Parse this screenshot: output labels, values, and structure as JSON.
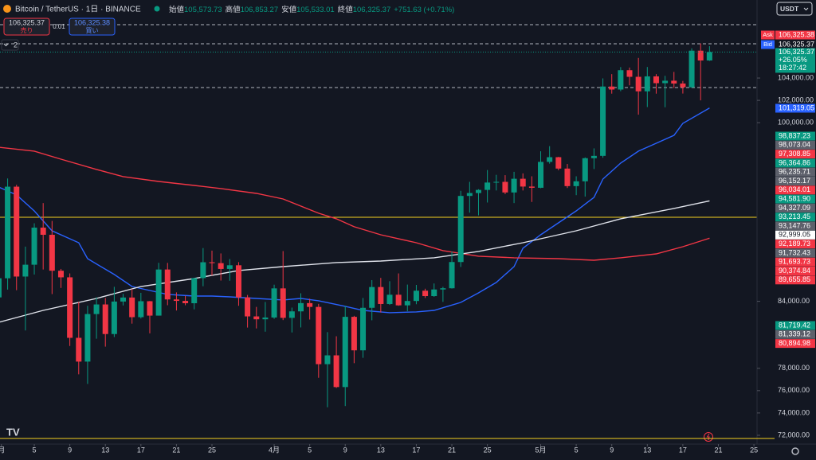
{
  "header": {
    "symbol": "Bitcoin / TetherUS · 1日 · BINANCE",
    "ohlc": [
      {
        "label": "始値",
        "value": "105,573.73"
      },
      {
        "label": "高値",
        "value": "106,853.27"
      },
      {
        "label": "安値",
        "value": "105,533.01"
      },
      {
        "label": "終値",
        "value": "106,325.37"
      }
    ],
    "change": "+751.63 (+0.71%)"
  },
  "order": {
    "sell_price": "106,325.37",
    "sell": "売り",
    "qty": "0.01",
    "buy_price": "106,325.38",
    "buy": "買い"
  },
  "indicators_count": "2",
  "currency": "USDT",
  "chart_data": {
    "type": "candlestick",
    "up_color": "#089981",
    "down_color": "#f23645",
    "xlim": [
      0.14,
      85.35
    ],
    "ylim": [
      71070,
      110990
    ],
    "x": [
      0,
      1,
      2,
      3,
      4,
      5,
      6,
      7,
      8,
      9,
      10,
      11,
      12,
      13,
      14,
      15,
      16,
      17,
      18,
      19,
      20,
      21,
      22,
      23,
      24,
      25,
      26,
      27,
      28,
      29,
      30,
      31,
      32,
      33,
      34,
      35,
      36,
      37,
      38,
      39,
      40,
      41,
      42,
      43,
      44,
      45,
      46,
      47,
      48,
      49,
      50,
      51,
      52,
      53,
      54,
      55,
      56,
      57,
      58,
      59,
      60,
      61,
      62,
      63,
      64,
      65,
      66,
      67,
      68,
      69,
      70,
      71,
      72,
      73,
      74,
      75,
      76,
      77,
      78,
      79,
      80
    ],
    "open": [
      84350,
      86065,
      94270,
      86220,
      87280,
      90600,
      89960,
      86740,
      86150,
      80730,
      78600,
      82860,
      83720,
      81070,
      83980,
      84340,
      82580,
      84010,
      82720,
      86850,
      84170,
      84040,
      83830,
      86080,
      87500,
      87420,
      86900,
      87230,
      84350,
      82650,
      82390,
      82550,
      85160,
      82520,
      83100,
      83840,
      83500,
      78370,
      79160,
      76320,
      82610,
      79610,
      83420,
      85280,
      83760,
      84590,
      83640,
      84030,
      84950,
      84470,
      85060,
      85170,
      87520,
      93440,
      93700,
      93980,
      94640,
      94700,
      93750,
      94980,
      94280,
      94170,
      96490,
      96910,
      95890,
      94320,
      94750,
      96820,
      97030,
      103240,
      102970,
      104700,
      104110,
      102810,
      104150,
      103540,
      103760,
      103510,
      103170,
      106450,
      105573.73
    ],
    "high": [
      86550,
      95000,
      94430,
      88900,
      90990,
      92800,
      91200,
      86900,
      86500,
      83950,
      83600,
      84360,
      84300,
      85300,
      84670,
      85120,
      84760,
      84030,
      87450,
      87440,
      84800,
      84500,
      86100,
      88770,
      88540,
      88290,
      87790,
      87510,
      84570,
      83500,
      83940,
      85490,
      88500,
      83440,
      84720,
      84230,
      83770,
      81240,
      80870,
      83590,
      82700,
      84300,
      85900,
      86100,
      85800,
      86500,
      85500,
      85470,
      85130,
      85600,
      85300,
      88460,
      93900,
      94700,
      94040,
      95760,
      95330,
      95300,
      95600,
      95460,
      95200,
      97440,
      97900,
      96940,
      96300,
      95200,
      96890,
      97700,
      103970,
      104350,
      104980,
      104940,
      105800,
      104990,
      104350,
      104200,
      104550,
      103740,
      106660,
      107100,
      106853.27
    ],
    "low": [
      83750,
      85050,
      85000,
      81390,
      86400,
      86850,
      84650,
      85200,
      80000,
      77460,
      76600,
      80650,
      79940,
      80800,
      83630,
      82000,
      82460,
      81130,
      82720,
      83650,
      83180,
      83650,
      83280,
      85350,
      86310,
      85860,
      85840,
      83600,
      81650,
      81570,
      81280,
      82430,
      82320,
      81210,
      81660,
      82370,
      77150,
      74510,
      76240,
      74620,
      78460,
      78940,
      82300,
      83000,
      83680,
      83600,
      83110,
      83740,
      84300,
      84400,
      83950,
      85140,
      87080,
      91940,
      91700,
      92850,
      93930,
      93600,
      92800,
      93930,
      92900,
      94130,
      96330,
      95740,
      94150,
      93510,
      93380,
      95850,
      96860,
      102600,
      102820,
      103350,
      100720,
      101400,
      102600,
      101380,
      103100,
      102610,
      103100,
      102000,
      105533.01
    ],
    "close": [
      86065,
      94270,
      86220,
      87280,
      90600,
      89960,
      86740,
      86150,
      80730,
      78600,
      82860,
      83720,
      81070,
      83980,
      84340,
      82580,
      84010,
      82720,
      86850,
      84170,
      84040,
      83830,
      86080,
      87500,
      87420,
      86900,
      87230,
      84350,
      82650,
      82390,
      82550,
      85160,
      82520,
      83100,
      83840,
      83500,
      78370,
      79160,
      76320,
      82610,
      79610,
      83420,
      85280,
      83760,
      84590,
      83640,
      84030,
      84950,
      84470,
      85060,
      85170,
      87520,
      93440,
      93700,
      93980,
      94640,
      94700,
      93750,
      94980,
      94280,
      94170,
      96490,
      96910,
      95890,
      94320,
      94750,
      96820,
      97030,
      103240,
      102970,
      104700,
      104110,
      102810,
      104150,
      103540,
      103760,
      103510,
      103170,
      106450,
      105573.73,
      106325.37
    ],
    "lines": [
      {
        "color": "#2962ff",
        "x": [
          0,
          2,
          4,
          6,
          9,
          10,
          13,
          15,
          17,
          19,
          22,
          24,
          26,
          29,
          32,
          34,
          36,
          39,
          41,
          44,
          47,
          49,
          52,
          54,
          56,
          58,
          59,
          61,
          63,
          65,
          67,
          68,
          70,
          72,
          74,
          76,
          77,
          80
        ],
        "values": [
          94240,
          93530,
          92100,
          90320,
          89250,
          87820,
          86400,
          85330,
          84970,
          84620,
          84470,
          84470,
          84400,
          84260,
          84120,
          84260,
          84050,
          83550,
          83190,
          82980,
          83050,
          83190,
          83900,
          84760,
          85690,
          87110,
          88750,
          89960,
          91030,
          92100,
          93310,
          94950,
          96380,
          97450,
          98160,
          98870,
          99940,
          101319.05
        ]
      },
      {
        "color": "#f23645",
        "x": [
          0,
          4,
          7,
          11,
          14,
          18,
          22,
          25,
          29,
          32,
          36,
          38,
          40,
          43,
          47,
          50,
          54,
          58,
          63,
          67,
          70,
          74,
          77,
          80
        ],
        "values": [
          97800,
          97450,
          96730,
          95810,
          95170,
          94740,
          94380,
          94100,
          93670,
          93170,
          91890,
          91390,
          90680,
          89960,
          89250,
          88540,
          88040,
          87900,
          87820,
          87680,
          87900,
          88250,
          88890,
          89655.85
        ]
      },
      {
        "color": "#e0e3eb",
        "x": [
          0,
          5,
          11,
          16,
          22,
          27,
          32,
          38,
          43,
          49,
          54,
          59,
          65,
          70,
          76,
          80
        ],
        "values": [
          82120,
          83190,
          84260,
          85330,
          86040,
          86760,
          87110,
          87470,
          87610,
          87900,
          88470,
          89250,
          90320,
          91390,
          92320,
          92999.05
        ]
      }
    ],
    "hlines": [
      {
        "value": 108780,
        "style": "dashed",
        "color": "#b2b5be"
      },
      {
        "value": 107070,
        "style": "dashed",
        "color": "#b2b5be"
      },
      {
        "value": 103150,
        "style": "dashed",
        "color": "#b2b5be"
      },
      {
        "value": 91530,
        "style": "solid",
        "color": "#f5d020"
      },
      {
        "value": 71720,
        "style": "solid",
        "color": "#f5d020"
      }
    ],
    "yticks": [
      {
        "value": 104000,
        "label": "104,000.00"
      },
      {
        "value": 102000,
        "label": "102,000.00"
      },
      {
        "value": 100000,
        "label": "100,000.00"
      },
      {
        "value": 84000,
        "label": "84,000.00"
      },
      {
        "value": 78000,
        "label": "78,000.00"
      },
      {
        "value": 76000,
        "label": "76,000.00"
      },
      {
        "value": 74000,
        "label": "74,000.00"
      },
      {
        "value": 72000,
        "label": "72,000.00"
      }
    ],
    "xticks": [
      {
        "value": 0.3,
        "label": "月"
      },
      {
        "value": 4,
        "label": "5"
      },
      {
        "value": 8,
        "label": "9"
      },
      {
        "value": 12,
        "label": "13"
      },
      {
        "value": 16,
        "label": "17"
      },
      {
        "value": 20,
        "label": "21"
      },
      {
        "value": 24,
        "label": "25"
      },
      {
        "value": 31,
        "label": "4月"
      },
      {
        "value": 35,
        "label": "5"
      },
      {
        "value": 39,
        "label": "9"
      },
      {
        "value": 43,
        "label": "13"
      },
      {
        "value": 47,
        "label": "17"
      },
      {
        "value": 51,
        "label": "21"
      },
      {
        "value": 55,
        "label": "25"
      },
      {
        "value": 61,
        "label": "5月"
      },
      {
        "value": 65,
        "label": "5"
      },
      {
        "value": 69,
        "label": "9"
      },
      {
        "value": 73,
        "label": "13"
      },
      {
        "value": 77,
        "label": "17"
      },
      {
        "value": 81,
        "label": "21"
      },
      {
        "value": 85,
        "label": "25"
      }
    ],
    "ask": {
      "tag": "Ask",
      "label": "106,325.38"
    },
    "bid": {
      "tag": "Bid",
      "label": "106,325.37"
    },
    "last": {
      "label": "106,325.37",
      "change": "+26.05%",
      "countdown": "18:27:42"
    },
    "price_label_groups": [
      [
        {
          "text": "101,319.05",
          "color": "#2962ff"
        }
      ],
      [
        {
          "text": "98,837.23",
          "color": "#089981"
        },
        {
          "text": "98,073.04",
          "color": "#5d606b"
        },
        {
          "text": "97,308.85",
          "color": "#f23645"
        },
        {
          "text": "96,364.86",
          "color": "#089981"
        },
        {
          "text": "96,235.71",
          "color": "#5d606b"
        },
        {
          "text": "96,152.17",
          "color": "#5d606b"
        },
        {
          "text": "96,034.01",
          "color": "#f23645"
        },
        {
          "text": "94,581.90",
          "color": "#089981"
        },
        {
          "text": "94,327.09",
          "color": "#5d606b"
        },
        {
          "text": "93,213.45",
          "color": "#089981"
        },
        {
          "text": "93,147.76",
          "color": "#5d606b"
        },
        {
          "text": "92,999.05",
          "color": "#ffffff"
        },
        {
          "text": "92,189.73",
          "color": "#f23645"
        },
        {
          "text": "91,732.43",
          "color": "#5d606b"
        },
        {
          "text": "91,693.73",
          "color": "#f23645"
        },
        {
          "text": "90,374.84",
          "color": "#f23645"
        },
        {
          "text": "89,655.85",
          "color": "#f23645"
        }
      ],
      [
        {
          "text": "81,719.42",
          "color": "#089981"
        },
        {
          "text": "81,339.12",
          "color": "#5d606b"
        },
        {
          "text": "80,894.98",
          "color": "#f23645"
        }
      ]
    ]
  }
}
